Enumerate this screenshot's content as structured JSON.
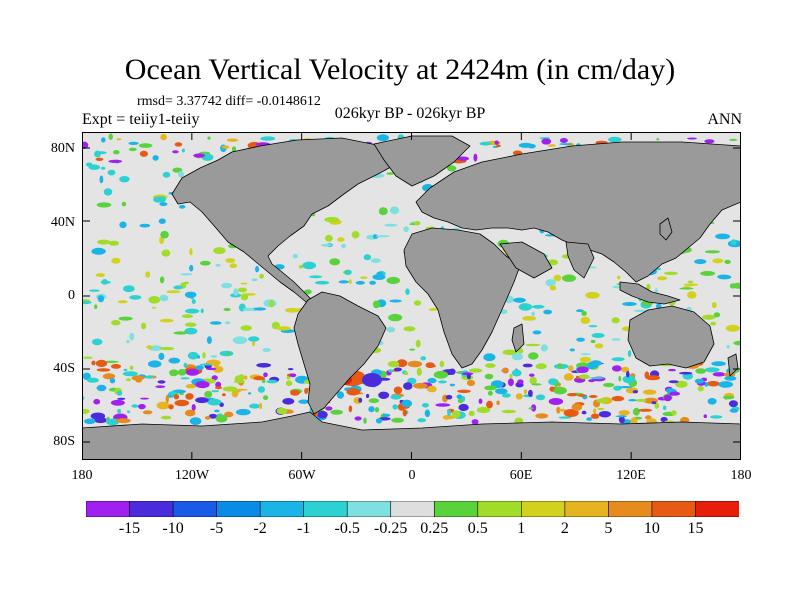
{
  "title": "Ocean Vertical Velocity at 2424m (in cm/day)",
  "stats": "rmsd= 3.37742 diff= -0.0148612",
  "experiment": "Expt = teiiy1-teiiy",
  "period": "026kyr BP - 026kyr BP",
  "season": "ANN",
  "lat_labels": [
    "80N",
    "40N",
    "0",
    "40S",
    "80S"
  ],
  "lon_labels": [
    "180",
    "120W",
    "60W",
    "0",
    "60E",
    "120E",
    "180"
  ],
  "colorbar": {
    "labels": [
      "-15",
      "-10",
      "-5",
      "-2",
      "-1",
      "-0.5",
      "-0.25",
      "0.25",
      "0.5",
      "1",
      "2",
      "5",
      "10",
      "15"
    ],
    "colors": [
      "#a020f0",
      "#4b2cdc",
      "#1a5ae6",
      "#0a8ce6",
      "#1ab4e6",
      "#2cd2d2",
      "#7ee0e0",
      "#dedede",
      "#5ad23c",
      "#a0dc28",
      "#d2d21e",
      "#e6b41e",
      "#e68c1e",
      "#e65a14",
      "#e61e0a"
    ]
  },
  "colors": {
    "land": "#9a9a9a",
    "ocean": "#e4e4e4",
    "frame": "#000000"
  }
}
